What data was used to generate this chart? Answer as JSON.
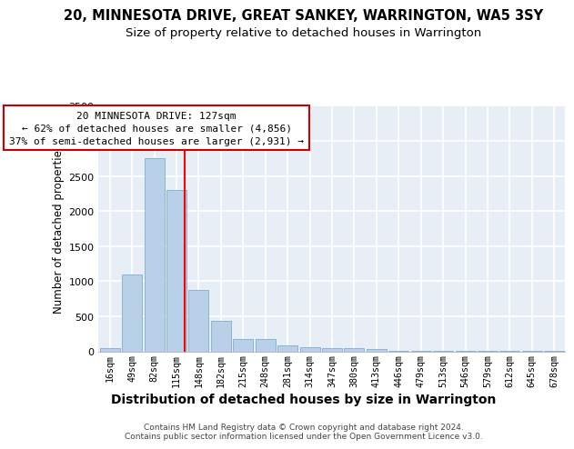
{
  "title": "20, MINNESOTA DRIVE, GREAT SANKEY, WARRINGTON, WA5 3SY",
  "subtitle": "Size of property relative to detached houses in Warrington",
  "xlabel": "Distribution of detached houses by size in Warrington",
  "ylabel": "Number of detached properties",
  "categories": [
    "16sqm",
    "49sqm",
    "82sqm",
    "115sqm",
    "148sqm",
    "182sqm",
    "215sqm",
    "248sqm",
    "281sqm",
    "314sqm",
    "347sqm",
    "380sqm",
    "413sqm",
    "446sqm",
    "479sqm",
    "513sqm",
    "546sqm",
    "579sqm",
    "612sqm",
    "645sqm",
    "678sqm"
  ],
  "values": [
    50,
    1100,
    2750,
    2300,
    880,
    430,
    170,
    170,
    90,
    60,
    50,
    40,
    30,
    10,
    5,
    5,
    5,
    5,
    2,
    2,
    2
  ],
  "bar_color": "#b8d0e8",
  "bar_edgecolor": "#7aafd4",
  "background_color": "#e8eef5",
  "grid_color": "#ffffff",
  "red_line_x": 3.36,
  "annotation_text": "20 MINNESOTA DRIVE: 127sqm\n← 62% of detached houses are smaller (4,856)\n37% of semi-detached houses are larger (2,931) →",
  "annotation_box_color": "#ffffff",
  "annotation_border_color": "#cc0000",
  "ylim": [
    0,
    3500
  ],
  "yticks": [
    0,
    500,
    1000,
    1500,
    2000,
    2500,
    3000,
    3500
  ],
  "footer": "Contains HM Land Registry data © Crown copyright and database right 2024.\nContains public sector information licensed under the Open Government Licence v3.0.",
  "title_fontsize": 10.5,
  "subtitle_fontsize": 9.5,
  "xlabel_fontsize": 10,
  "ylabel_fontsize": 8.5,
  "ann_fontsize": 8
}
